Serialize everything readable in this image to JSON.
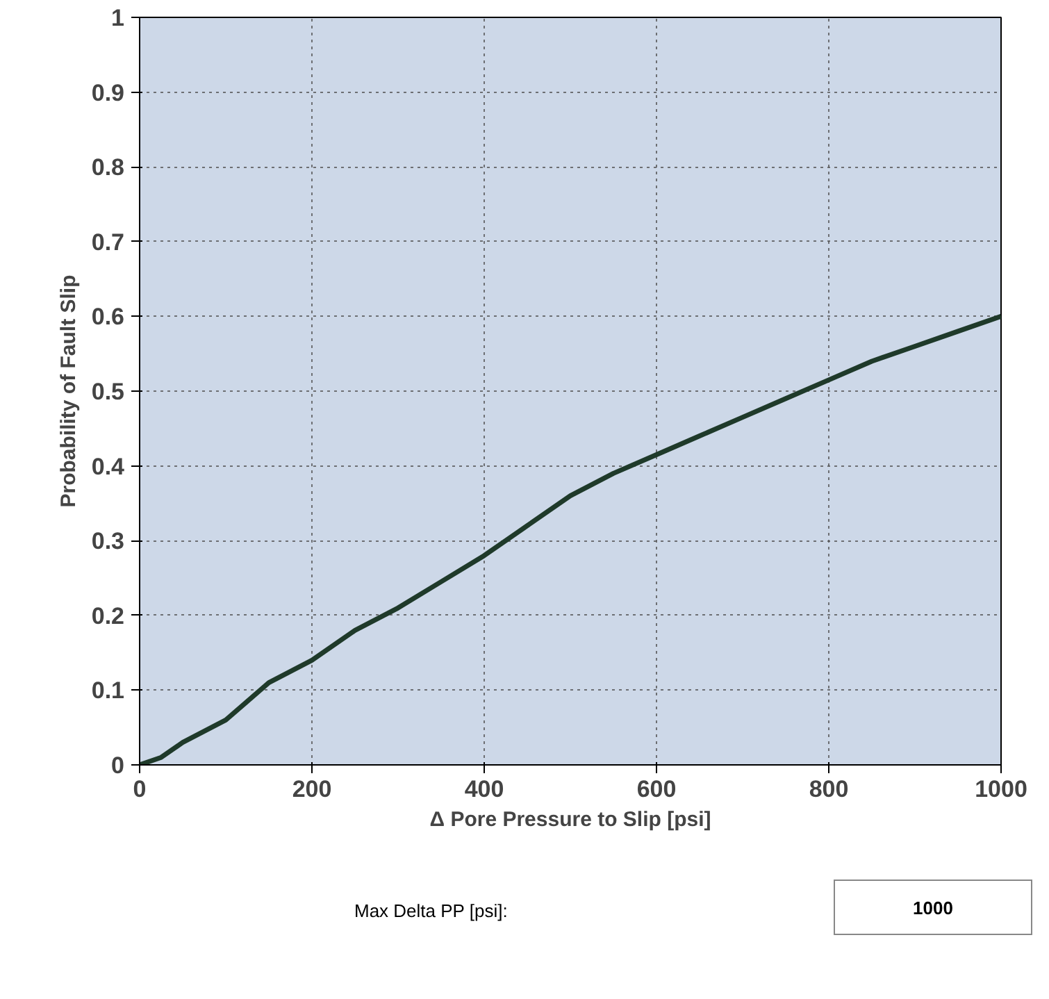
{
  "chart_data": {
    "type": "line",
    "xlabel": "Δ Pore Pressure to Slip [psi]",
    "ylabel": "Probability of Fault Slip",
    "x": [
      0,
      25,
      50,
      100,
      150,
      200,
      250,
      300,
      350,
      400,
      450,
      500,
      550,
      600,
      650,
      700,
      750,
      800,
      850,
      900,
      950,
      1000
    ],
    "series": [
      {
        "color": "#1f3a2a",
        "values": [
          0,
          0.01,
          0.03,
          0.06,
          0.11,
          0.14,
          0.18,
          0.21,
          0.245,
          0.28,
          0.32,
          0.36,
          0.39,
          0.415,
          0.44,
          0.465,
          0.49,
          0.515,
          0.54,
          0.56,
          0.58,
          0.6
        ]
      }
    ],
    "xlim": [
      0,
      1000
    ],
    "ylim": [
      0,
      1
    ],
    "xticks": [
      0,
      200,
      400,
      600,
      800,
      1000
    ],
    "yticks": [
      0,
      0.1,
      0.2,
      0.3,
      0.4,
      0.5,
      0.6,
      0.7,
      0.8,
      0.9,
      1
    ],
    "grid": true,
    "line_style": "solid",
    "annotations": [
      "Max Delta PP [psi]:",
      "1000"
    ]
  }
}
